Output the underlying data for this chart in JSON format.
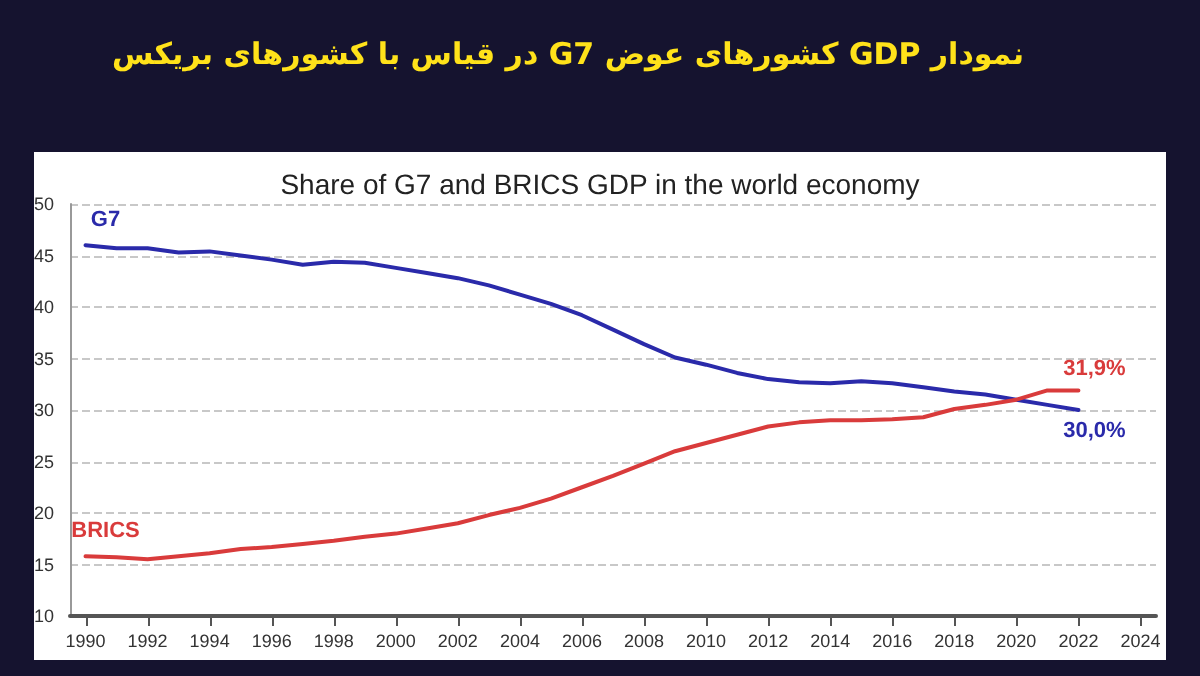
{
  "chart_data": {
    "type": "line",
    "title": "نمودار GDP کشورهای عوض G7 در قیاس با کشورهای بریکس",
    "subtitle": "Share of G7 and BRICS GDP in the world economy",
    "x": [
      1990,
      1991,
      1992,
      1993,
      1994,
      1995,
      1996,
      1997,
      1998,
      1999,
      2000,
      2001,
      2002,
      2003,
      2004,
      2005,
      2006,
      2007,
      2008,
      2009,
      2010,
      2011,
      2012,
      2013,
      2014,
      2015,
      2016,
      2017,
      2018,
      2019,
      2020,
      2021,
      2022
    ],
    "series": [
      {
        "name": "G7",
        "color": "#2a2aaa",
        "values": [
          46,
          45.7,
          45.7,
          45.3,
          45.4,
          45,
          44.6,
          44.1,
          44.4,
          44.3,
          43.8,
          43.3,
          42.8,
          42.1,
          41.2,
          40.3,
          39.2,
          37.8,
          36.4,
          35.1,
          34.4,
          33.6,
          33,
          32.7,
          32.6,
          32.8,
          32.6,
          32.2,
          31.8,
          31.5,
          31,
          30.5,
          30
        ]
      },
      {
        "name": "BRICS",
        "color": "#d93b3b",
        "values": [
          15.8,
          15.7,
          15.5,
          15.8,
          16.1,
          16.5,
          16.7,
          17,
          17.3,
          17.7,
          18,
          18.5,
          19,
          19.8,
          20.5,
          21.4,
          22.5,
          23.6,
          24.8,
          26,
          26.8,
          27.6,
          28.4,
          28.8,
          29,
          29,
          29.1,
          29.3,
          30.1,
          30.5,
          31,
          31.9,
          31.9
        ]
      }
    ],
    "annotations": [
      {
        "text": "31,9%",
        "x": 2022,
        "y": 31.9
      },
      {
        "text": "30,0%",
        "x": 2022,
        "y": 30
      }
    ],
    "xlim": [
      1989.5,
      2024.5
    ],
    "xticks": [
      1990,
      1992,
      1994,
      1996,
      1998,
      2000,
      2002,
      2004,
      2006,
      2008,
      2010,
      2012,
      2014,
      2016,
      2018,
      2020,
      2022,
      2024
    ],
    "ylim": [
      10,
      50
    ],
    "yticks": [
      10,
      15,
      20,
      25,
      30,
      35,
      40,
      45,
      50
    ],
    "grid": "y",
    "legend": false,
    "marker": "none",
    "line_style": "solid"
  }
}
